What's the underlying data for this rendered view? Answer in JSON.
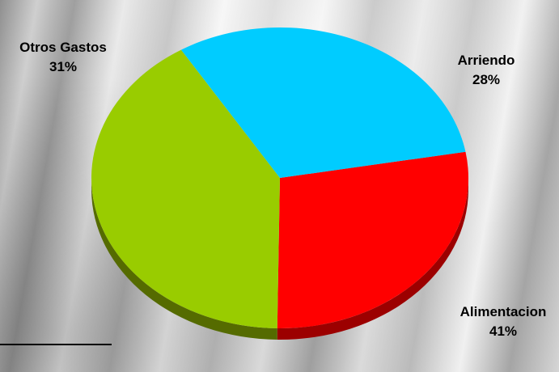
{
  "chart_data": {
    "type": "pie",
    "categories": [
      "Arriendo",
      "Alimentacion",
      "Otros Gastos"
    ],
    "values": [
      28,
      41,
      31
    ],
    "value_labels": [
      "28%",
      "41%",
      "31%"
    ],
    "colors": [
      "#FF0000",
      "#99CC00",
      "#00CCFF"
    ],
    "side_colors": [
      "#9C0000",
      "#556B00",
      "#0088AA"
    ],
    "title": "",
    "style": "3d-tilted",
    "start_angle_deg": -10,
    "legend": "none"
  }
}
